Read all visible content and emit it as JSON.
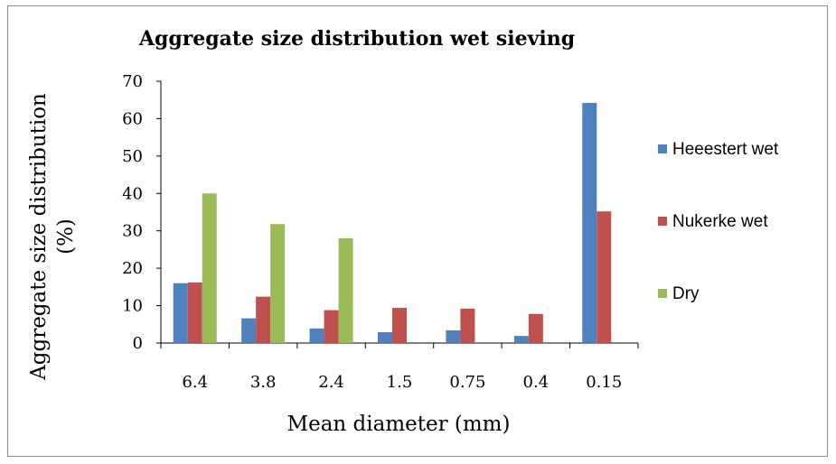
{
  "chart_data": {
    "type": "bar",
    "title": "Aggregate size distribution wet sieving",
    "xlabel": "Mean diameter (mm)",
    "ylabel_lines": [
      "Aggregate size distribution",
      "(%)"
    ],
    "ylim": [
      0,
      70
    ],
    "yticks": [
      0,
      10,
      20,
      30,
      40,
      50,
      60,
      70
    ],
    "categories": [
      "6.4",
      "3.8",
      "2.4",
      "1.5",
      "0.75",
      "0.4",
      "0.15"
    ],
    "series": [
      {
        "name": "Heeestert wet",
        "color": "#4f81bd",
        "values": [
          16,
          6.6,
          3.9,
          2.9,
          3.4,
          1.9,
          64.2
        ]
      },
      {
        "name": "Nukerke wet",
        "color": "#c0504d",
        "values": [
          16.2,
          12.4,
          8.8,
          9.4,
          9.2,
          7.8,
          35.2
        ]
      },
      {
        "name": "Dry",
        "color": "#9bbb59",
        "values": [
          40,
          31.8,
          28,
          0,
          0,
          0,
          0
        ]
      }
    ],
    "grid": false,
    "legend_position": "right"
  }
}
